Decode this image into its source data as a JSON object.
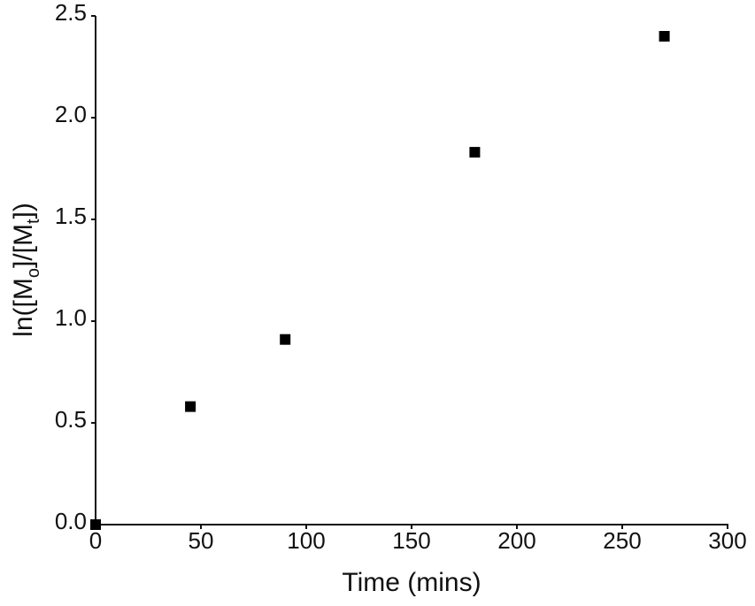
{
  "chart_data": {
    "type": "scatter",
    "x_label": "Time (mins)",
    "y_label": [
      "ln([M",
      "o",
      "]/[M",
      "t",
      "])"
    ],
    "x": [
      0,
      45,
      90,
      180,
      270
    ],
    "values": [
      0,
      0.58,
      0.91,
      1.83,
      2.4
    ],
    "color": "#000000",
    "xlim": [
      0,
      300
    ],
    "xticks": [
      0,
      50,
      100,
      150,
      200,
      250,
      300
    ],
    "ylim": [
      0,
      2.5
    ],
    "yticks": [
      {
        "value": 0,
        "label": "0.0"
      },
      0.5,
      {
        "value": 1,
        "label": "1.0"
      },
      1.5,
      {
        "value": 2,
        "label": "2.0"
      },
      2.5
    ],
    "grid": false
  }
}
